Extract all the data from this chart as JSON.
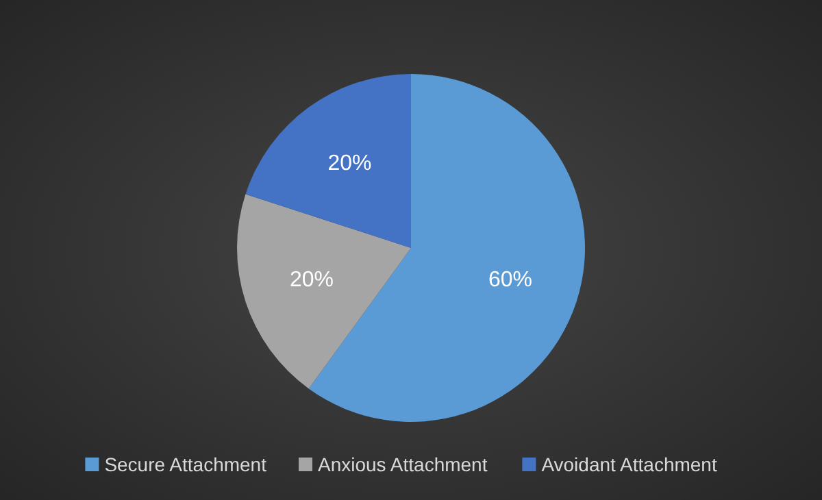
{
  "chart_data": {
    "type": "pie",
    "categories": [
      "Secure Attachment",
      "Anxious Attachment",
      "Avoidant Attachment"
    ],
    "values": [
      60,
      20,
      20
    ],
    "colors": [
      "#5b9bd5",
      "#a5a5a5",
      "#4472c4"
    ],
    "value_labels": [
      "60%",
      "20%",
      "20%"
    ],
    "legend": "bottom"
  }
}
